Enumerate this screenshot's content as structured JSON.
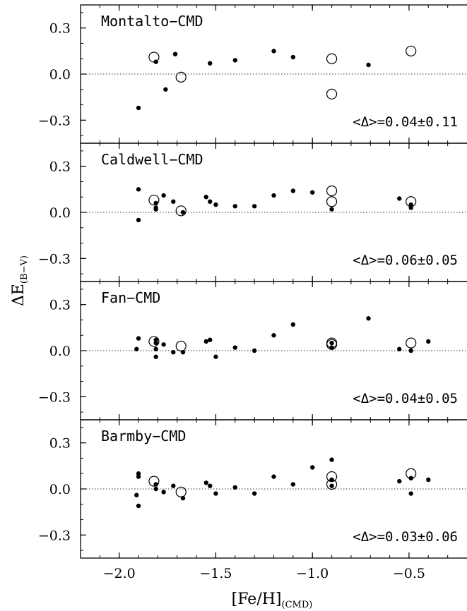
{
  "chart_data": {
    "type": "scatter",
    "xlabel": "[Fe/H]",
    "xlabel_sub": "(CMD)",
    "ylabel": "ΔE",
    "ylabel_sub": "(B−V)",
    "xlim": [
      -2.2,
      -0.2
    ],
    "ylim": [
      -0.45,
      0.45
    ],
    "xticks": [
      -2.0,
      -1.5,
      -1.0,
      -0.5
    ],
    "xtick_labels": [
      "−2.0",
      "−1.5",
      "−1.0",
      "−0.5"
    ],
    "yticks": [
      0.3,
      0.0,
      -0.3
    ],
    "ytick_labels": [
      "0.3",
      "0.0",
      "−0.3"
    ],
    "zero_line": 0.0,
    "panels": [
      {
        "title": "Montalto−CMD",
        "stat": "<Δ>=0.04±0.11",
        "filled_points": [
          {
            "x": -1.9,
            "y": -0.22
          },
          {
            "x": -1.81,
            "y": 0.08
          },
          {
            "x": -1.76,
            "y": -0.1
          },
          {
            "x": -1.71,
            "y": 0.13
          },
          {
            "x": -1.53,
            "y": 0.07
          },
          {
            "x": -1.4,
            "y": 0.09
          },
          {
            "x": -1.2,
            "y": 0.15
          },
          {
            "x": -1.1,
            "y": 0.11
          },
          {
            "x": -0.71,
            "y": 0.06
          }
        ],
        "open_points": [
          {
            "x": -1.82,
            "y": 0.11
          },
          {
            "x": -1.68,
            "y": -0.02
          },
          {
            "x": -0.9,
            "y": 0.1
          },
          {
            "x": -0.9,
            "y": -0.13
          },
          {
            "x": -0.49,
            "y": 0.15
          }
        ]
      },
      {
        "title": "Caldwell−CMD",
        "stat": "<Δ>=0.06±0.05",
        "filled_points": [
          {
            "x": -1.9,
            "y": 0.15
          },
          {
            "x": -1.9,
            "y": -0.05
          },
          {
            "x": -1.81,
            "y": 0.06
          },
          {
            "x": -1.81,
            "y": 0.03
          },
          {
            "x": -1.81,
            "y": 0.02
          },
          {
            "x": -1.77,
            "y": 0.11
          },
          {
            "x": -1.72,
            "y": 0.07
          },
          {
            "x": -1.67,
            "y": 0.0
          },
          {
            "x": -1.55,
            "y": 0.1
          },
          {
            "x": -1.53,
            "y": 0.07
          },
          {
            "x": -1.5,
            "y": 0.05
          },
          {
            "x": -1.4,
            "y": 0.04
          },
          {
            "x": -1.3,
            "y": 0.04
          },
          {
            "x": -1.2,
            "y": 0.11
          },
          {
            "x": -1.1,
            "y": 0.14
          },
          {
            "x": -1.0,
            "y": 0.13
          },
          {
            "x": -0.9,
            "y": 0.02
          },
          {
            "x": -0.55,
            "y": 0.09
          },
          {
            "x": -0.49,
            "y": 0.05
          },
          {
            "x": -0.49,
            "y": 0.03
          }
        ],
        "open_points": [
          {
            "x": -1.82,
            "y": 0.08
          },
          {
            "x": -1.68,
            "y": 0.01
          },
          {
            "x": -0.9,
            "y": 0.14
          },
          {
            "x": -0.9,
            "y": 0.07
          },
          {
            "x": -0.49,
            "y": 0.07
          }
        ]
      },
      {
        "title": "Fan−CMD",
        "stat": "<Δ>=0.04±0.05",
        "filled_points": [
          {
            "x": -1.91,
            "y": 0.01
          },
          {
            "x": -1.9,
            "y": 0.08
          },
          {
            "x": -1.81,
            "y": 0.07
          },
          {
            "x": -1.81,
            "y": 0.05
          },
          {
            "x": -1.81,
            "y": 0.01
          },
          {
            "x": -1.81,
            "y": -0.04
          },
          {
            "x": -1.77,
            "y": 0.04
          },
          {
            "x": -1.72,
            "y": -0.01
          },
          {
            "x": -1.67,
            "y": -0.01
          },
          {
            "x": -1.55,
            "y": 0.06
          },
          {
            "x": -1.53,
            "y": 0.07
          },
          {
            "x": -1.5,
            "y": -0.04
          },
          {
            "x": -1.4,
            "y": 0.02
          },
          {
            "x": -1.3,
            "y": 0.0
          },
          {
            "x": -1.2,
            "y": 0.1
          },
          {
            "x": -1.1,
            "y": 0.17
          },
          {
            "x": -0.9,
            "y": 0.05
          },
          {
            "x": -0.9,
            "y": 0.02
          },
          {
            "x": -0.71,
            "y": 0.21
          },
          {
            "x": -0.55,
            "y": 0.01
          },
          {
            "x": -0.49,
            "y": 0.0
          },
          {
            "x": -0.4,
            "y": 0.06
          }
        ],
        "open_points": [
          {
            "x": -1.82,
            "y": 0.06
          },
          {
            "x": -1.68,
            "y": 0.03
          },
          {
            "x": -0.9,
            "y": 0.05
          },
          {
            "x": -0.9,
            "y": 0.04
          },
          {
            "x": -0.49,
            "y": 0.05
          }
        ]
      },
      {
        "title": "Barmby−CMD",
        "stat": "<Δ>=0.03±0.06",
        "filled_points": [
          {
            "x": -1.9,
            "y": 0.1
          },
          {
            "x": -1.9,
            "y": 0.08
          },
          {
            "x": -1.91,
            "y": -0.04
          },
          {
            "x": -1.9,
            "y": -0.11
          },
          {
            "x": -1.81,
            "y": 0.03
          },
          {
            "x": -1.81,
            "y": 0.0
          },
          {
            "x": -1.77,
            "y": -0.02
          },
          {
            "x": -1.72,
            "y": 0.02
          },
          {
            "x": -1.67,
            "y": -0.06
          },
          {
            "x": -1.55,
            "y": 0.04
          },
          {
            "x": -1.53,
            "y": 0.02
          },
          {
            "x": -1.5,
            "y": -0.03
          },
          {
            "x": -1.4,
            "y": 0.01
          },
          {
            "x": -1.3,
            "y": -0.03
          },
          {
            "x": -1.2,
            "y": 0.08
          },
          {
            "x": -1.1,
            "y": 0.03
          },
          {
            "x": -1.0,
            "y": 0.14
          },
          {
            "x": -0.9,
            "y": 0.19
          },
          {
            "x": -0.9,
            "y": 0.06
          },
          {
            "x": -0.9,
            "y": 0.02
          },
          {
            "x": -0.55,
            "y": 0.05
          },
          {
            "x": -0.49,
            "y": 0.07
          },
          {
            "x": -0.49,
            "y": -0.03
          },
          {
            "x": -0.4,
            "y": 0.06
          }
        ],
        "open_points": [
          {
            "x": -1.82,
            "y": 0.05
          },
          {
            "x": -1.68,
            "y": -0.02
          },
          {
            "x": -0.9,
            "y": 0.08
          },
          {
            "x": -0.9,
            "y": 0.03
          },
          {
            "x": -0.49,
            "y": 0.1
          }
        ]
      }
    ]
  }
}
